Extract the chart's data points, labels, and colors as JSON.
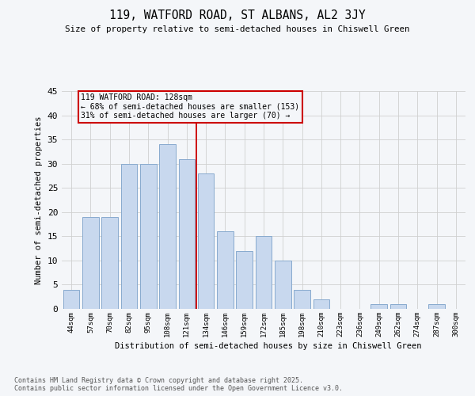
{
  "title": "119, WATFORD ROAD, ST ALBANS, AL2 3JY",
  "subtitle": "Size of property relative to semi-detached houses in Chiswell Green",
  "xlabel": "Distribution of semi-detached houses by size in Chiswell Green",
  "ylabel": "Number of semi-detached properties",
  "categories": [
    "44sqm",
    "57sqm",
    "70sqm",
    "82sqm",
    "95sqm",
    "108sqm",
    "121sqm",
    "134sqm",
    "146sqm",
    "159sqm",
    "172sqm",
    "185sqm",
    "198sqm",
    "210sqm",
    "223sqm",
    "236sqm",
    "249sqm",
    "262sqm",
    "274sqm",
    "287sqm",
    "300sqm"
  ],
  "values": [
    4,
    19,
    19,
    30,
    30,
    34,
    31,
    28,
    16,
    12,
    15,
    10,
    4,
    2,
    0,
    0,
    1,
    1,
    0,
    1,
    0
  ],
  "bar_color": "#c8d8ee",
  "bar_edge_color": "#88aace",
  "vline_bin_index": 7,
  "vline_color": "#cc0000",
  "annotation_title": "119 WATFORD ROAD: 128sqm",
  "annotation_line1": "← 68% of semi-detached houses are smaller (153)",
  "annotation_line2": "31% of semi-detached houses are larger (70) →",
  "annotation_box_color": "#cc0000",
  "ylim": [
    0,
    45
  ],
  "yticks": [
    0,
    5,
    10,
    15,
    20,
    25,
    30,
    35,
    40,
    45
  ],
  "background_color": "#f4f6f9",
  "plot_bg_color": "#f4f6f9",
  "grid_color": "#d0d0d0",
  "footer_line1": "Contains HM Land Registry data © Crown copyright and database right 2025.",
  "footer_line2": "Contains public sector information licensed under the Open Government Licence v3.0."
}
